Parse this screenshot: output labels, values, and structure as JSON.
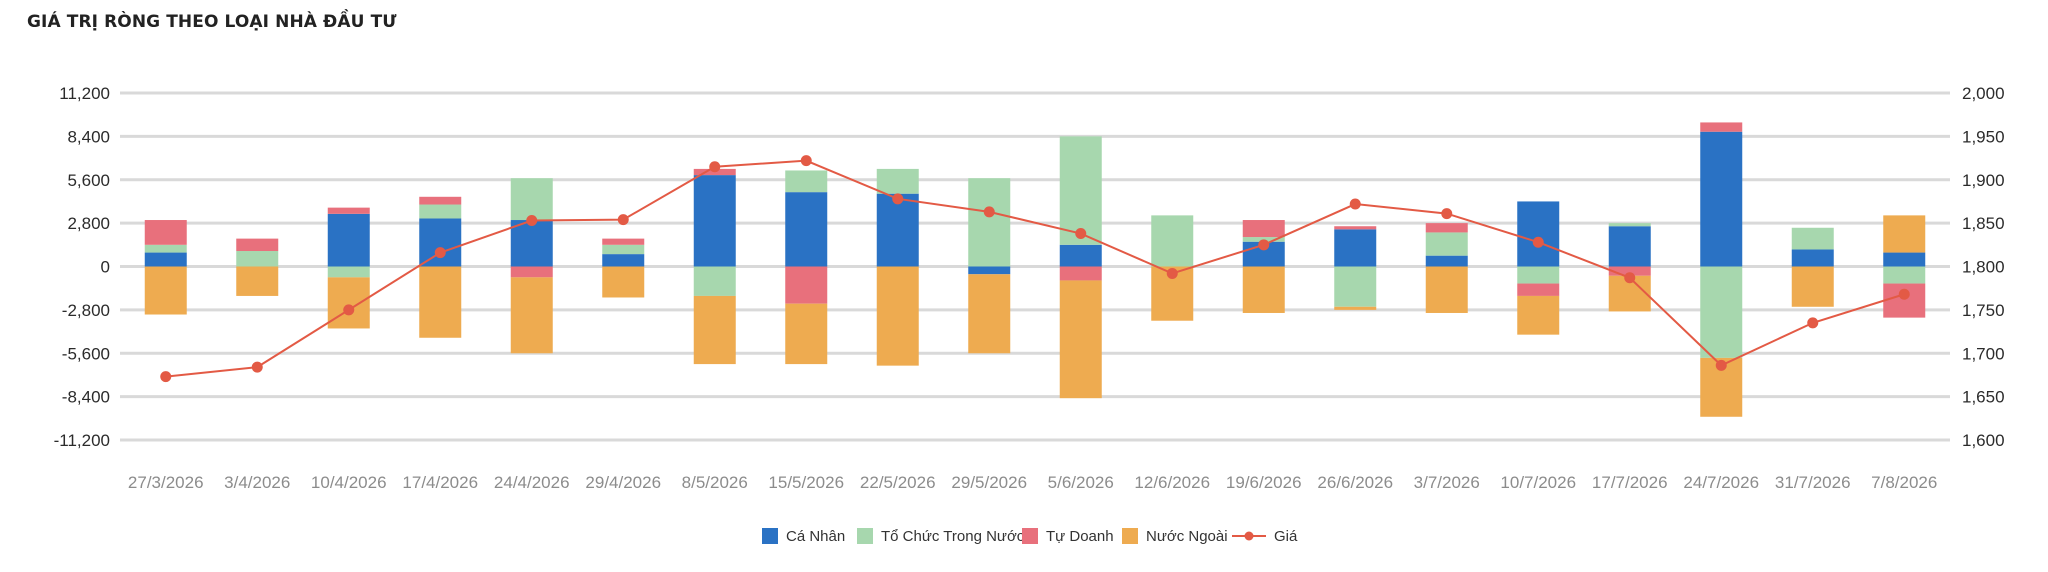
{
  "chart_data": {
    "type": "bar",
    "title": "GIÁ TRỊ RÒNG THEO LOẠI NHÀ ĐẦU TƯ",
    "stacked": true,
    "categories": [
      "27/3/2026",
      "3/4/2026",
      "10/4/2026",
      "17/4/2026",
      "24/4/2026",
      "29/4/2026",
      "8/5/2026",
      "15/5/2026",
      "22/5/2026",
      "29/5/2026",
      "5/6/2026",
      "12/6/2026",
      "19/6/2026",
      "26/6/2026",
      "3/7/2026",
      "10/7/2026",
      "17/7/2026",
      "24/7/2026",
      "31/7/2026",
      "7/8/2026"
    ],
    "series": [
      {
        "name": "Cá Nhân",
        "color": "#2a72c4",
        "axis": "left",
        "values": [
          900,
          0,
          3400,
          3100,
          3000,
          800,
          5900,
          4800,
          4700,
          -500,
          1400,
          0,
          1600,
          2400,
          700,
          4200,
          2600,
          8700,
          1100,
          900
        ]
      },
      {
        "name": "Tổ Chức Trong Nước",
        "color": "#a7d7ae",
        "axis": "left",
        "values": [
          500,
          1000,
          -700,
          900,
          2700,
          600,
          -1900,
          1400,
          1600,
          5700,
          7000,
          3300,
          300,
          -2600,
          1500,
          -1100,
          200,
          -5900,
          1400,
          -1100
        ]
      },
      {
        "name": "Tự Doanh",
        "color": "#e8707c",
        "axis": "left",
        "values": [
          1600,
          800,
          400,
          500,
          -700,
          400,
          400,
          -2400,
          0,
          0,
          -900,
          0,
          1100,
          200,
          600,
          -800,
          -600,
          600,
          0,
          -2200
        ]
      },
      {
        "name": "Nước Ngoài",
        "color": "#eeab50",
        "axis": "left",
        "values": [
          -3100,
          -1900,
          -3300,
          -4600,
          -4900,
          -2000,
          -4400,
          -3900,
          -6400,
          -5100,
          -7600,
          -3500,
          -3000,
          -200,
          -3000,
          -2500,
          -2300,
          -3800,
          -2600,
          2400
        ]
      },
      {
        "name": "Giá",
        "type": "line",
        "color": "#e35a45",
        "axis": "right",
        "values": [
          1673,
          1684,
          1750,
          1816,
          1853,
          1854,
          1915,
          1922,
          1878,
          1863,
          1838,
          1792,
          1825,
          1872,
          1861,
          1828,
          1787,
          1686,
          1735,
          1768
        ]
      }
    ],
    "y_left": {
      "min": -11200,
      "max": 11200,
      "ticks": [
        "11,200",
        "8,400",
        "5,600",
        "2,800",
        "0",
        "-2,800",
        "-5,600",
        "-8,400",
        "-11,200"
      ]
    },
    "y_right": {
      "min": 1600,
      "max": 2000,
      "ticks": [
        "2,000",
        "1,950",
        "1,900",
        "1,850",
        "1,800",
        "1,750",
        "1,700",
        "1,650",
        "1,600"
      ]
    },
    "grid": true,
    "legend_position": "bottom"
  }
}
